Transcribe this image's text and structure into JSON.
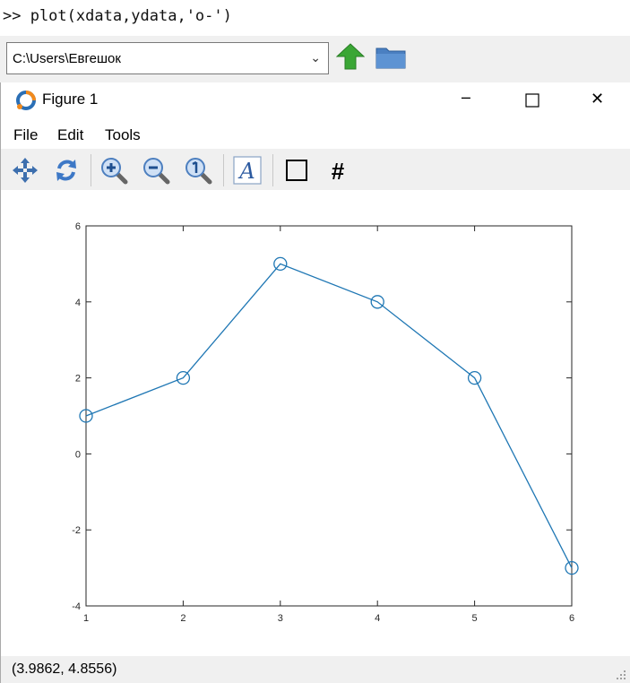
{
  "command_line": {
    "text": ">> plot(xdata,ydata,'o-')"
  },
  "directory": {
    "path": "C:\\Users\\Евгешок"
  },
  "window": {
    "title": "Figure 1",
    "minimize_glyph": "─",
    "close_glyph": "✕"
  },
  "menu": {
    "items": [
      "File",
      "Edit",
      "Tools"
    ]
  },
  "toolbar": {
    "icons": [
      "pan-icon",
      "rotate-icon",
      "zoom-in-icon",
      "zoom-out-icon",
      "zoom-reset-icon",
      "text-insert-icon",
      "axes-box-icon",
      "grid-icon"
    ],
    "text_glyph": "A",
    "grid_glyph": "#"
  },
  "status": {
    "coordinates": "(3.9862, 4.8556)"
  },
  "colors": {
    "line": "#1f77b4",
    "toolbar_bg": "#f0f0f0",
    "up_arrow": "#3aa635",
    "folder": "#4a7fc1"
  },
  "chart_data": {
    "type": "line",
    "marker": "circle",
    "x": [
      1,
      2,
      3,
      4,
      5,
      6
    ],
    "series": [
      {
        "values": [
          1,
          2,
          5,
          4,
          2,
          -3
        ]
      }
    ],
    "xlim": [
      1,
      6
    ],
    "ylim": [
      -4,
      6
    ],
    "xticks": [
      1,
      2,
      3,
      4,
      5,
      6
    ],
    "yticks": [
      -4,
      -2,
      0,
      2,
      4,
      6
    ],
    "xtick_labels": [
      "1",
      "2",
      "3",
      "4",
      "5",
      "6"
    ],
    "ytick_labels": [
      "-4",
      "-2",
      "0",
      "2",
      "4",
      "6"
    ],
    "grid": false,
    "title": "",
    "xlabel": "",
    "ylabel": ""
  }
}
